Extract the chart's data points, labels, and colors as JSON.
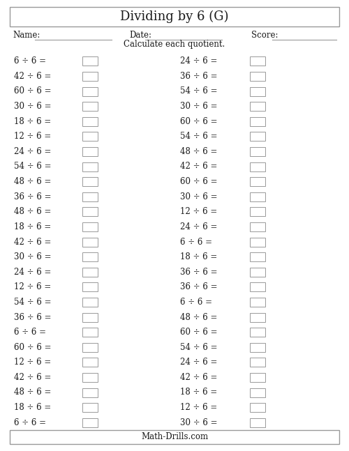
{
  "title": "Dividing by 6 (G)",
  "name_label": "Name:",
  "date_label": "Date:",
  "score_label": "Score:",
  "instruction": "Calculate each quotient.",
  "footer": "Math-Drills.com",
  "left_column": [
    "6 ÷ 6 =",
    "42 ÷ 6 =",
    "60 ÷ 6 =",
    "30 ÷ 6 =",
    "18 ÷ 6 =",
    "12 ÷ 6 =",
    "24 ÷ 6 =",
    "54 ÷ 6 =",
    "48 ÷ 6 =",
    "36 ÷ 6 =",
    "48 ÷ 6 =",
    "18 ÷ 6 =",
    "42 ÷ 6 =",
    "30 ÷ 6 =",
    "24 ÷ 6 =",
    "12 ÷ 6 =",
    "54 ÷ 6 =",
    "36 ÷ 6 =",
    "6 ÷ 6 =",
    "60 ÷ 6 =",
    "12 ÷ 6 =",
    "42 ÷ 6 =",
    "48 ÷ 6 =",
    "18 ÷ 6 =",
    "6 ÷ 6 ="
  ],
  "right_column": [
    "24 ÷ 6 =",
    "36 ÷ 6 =",
    "54 ÷ 6 =",
    "30 ÷ 6 =",
    "60 ÷ 6 =",
    "54 ÷ 6 =",
    "48 ÷ 6 =",
    "42 ÷ 6 =",
    "60 ÷ 6 =",
    "30 ÷ 6 =",
    "12 ÷ 6 =",
    "24 ÷ 6 =",
    "6 ÷ 6 =",
    "18 ÷ 6 =",
    "36 ÷ 6 =",
    "36 ÷ 6 =",
    "6 ÷ 6 =",
    "48 ÷ 6 =",
    "60 ÷ 6 =",
    "54 ÷ 6 =",
    "24 ÷ 6 =",
    "42 ÷ 6 =",
    "18 ÷ 6 =",
    "12 ÷ 6 =",
    "30 ÷ 6 ="
  ],
  "bg_color": "#ffffff",
  "text_color": "#1a1a1a",
  "border_color": "#999999",
  "title_fontsize": 13,
  "body_fontsize": 8.5,
  "header_fontsize": 8.5,
  "instruction_fontsize": 8.5,
  "footer_fontsize": 8.5,
  "fig_width": 5.0,
  "fig_height": 6.47,
  "dpi": 100
}
